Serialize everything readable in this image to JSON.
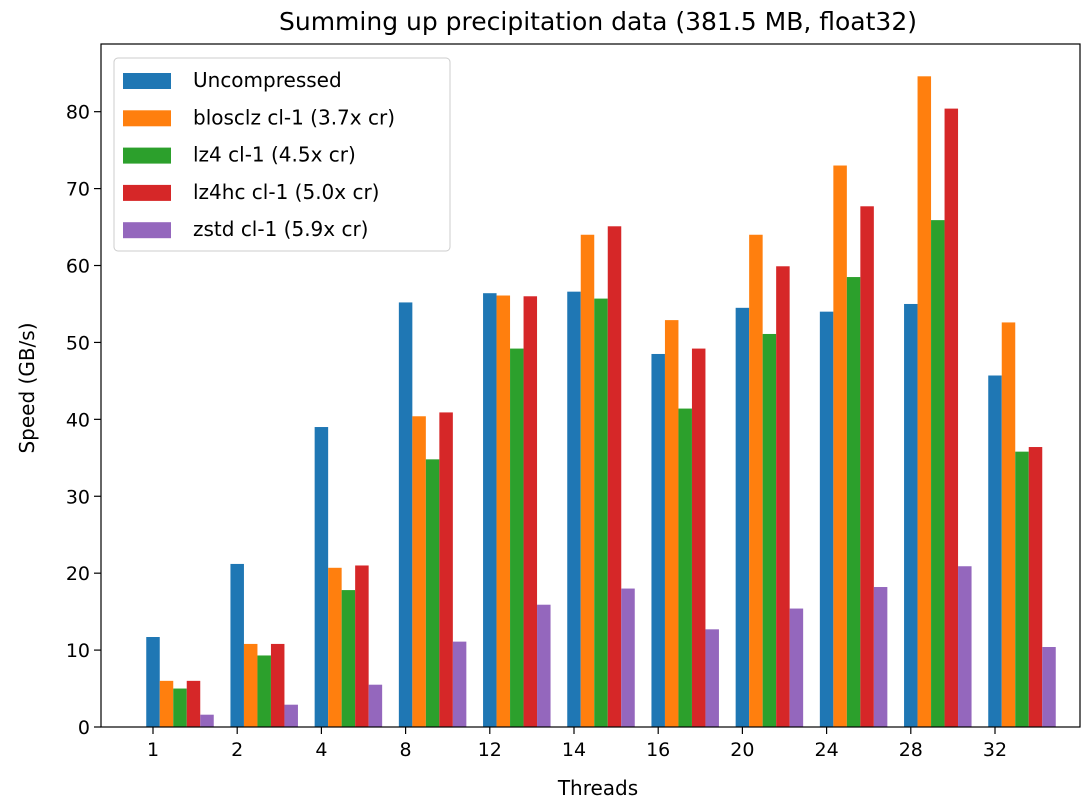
{
  "chart_data": {
    "type": "bar",
    "title": "Summing up precipitation data (381.5 MB, float32)",
    "xlabel": "Threads",
    "ylabel": "Speed (GB/s)",
    "categories": [
      "1",
      "2",
      "4",
      "8",
      "12",
      "14",
      "16",
      "20",
      "24",
      "28",
      "32"
    ],
    "ylim": [
      0,
      88.8
    ],
    "yticks": [
      0,
      10,
      20,
      30,
      40,
      50,
      60,
      70,
      80
    ],
    "grid": false,
    "legend_position": "top-left",
    "series": [
      {
        "name": "Uncompressed",
        "color": "#1f77b4",
        "values": [
          11.7,
          21.2,
          39.0,
          55.2,
          56.4,
          56.6,
          48.5,
          54.5,
          54.0,
          55.0,
          45.7
        ]
      },
      {
        "name": "blosclz cl-1 (3.7x cr)",
        "color": "#ff7f0e",
        "values": [
          6.0,
          10.8,
          20.7,
          40.4,
          56.1,
          64.0,
          52.9,
          64.0,
          73.0,
          84.6,
          52.6
        ]
      },
      {
        "name": "lz4 cl-1 (4.5x cr)",
        "color": "#2ca02c",
        "values": [
          5.0,
          9.3,
          17.8,
          34.8,
          49.2,
          55.7,
          41.4,
          51.1,
          58.5,
          65.9,
          35.8
        ]
      },
      {
        "name": "lz4hc cl-1 (5.0x cr)",
        "color": "#d62728",
        "values": [
          6.0,
          10.8,
          21.0,
          40.9,
          56.0,
          65.1,
          49.2,
          59.9,
          67.7,
          80.4,
          36.4
        ]
      },
      {
        "name": "zstd cl-1 (5.9x cr)",
        "color": "#9467bd",
        "values": [
          1.6,
          2.9,
          5.5,
          11.1,
          15.9,
          18.0,
          12.7,
          15.4,
          18.2,
          20.9,
          10.4
        ]
      }
    ]
  }
}
